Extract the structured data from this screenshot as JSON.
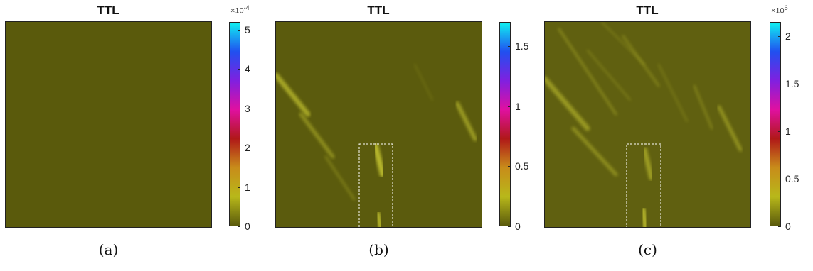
{
  "panels": [
    {
      "title": "TTL",
      "label": "(a)",
      "colorbar_ticks": [
        "0",
        "1",
        "2",
        "3",
        "4",
        "5"
      ],
      "colorbar_tick_values": [
        0,
        1,
        2,
        3,
        4,
        5
      ],
      "colorbar_max": 5.2,
      "colorbar_exponent_base": "×10",
      "colorbar_exponent": "-4",
      "background_color": "#5a5a0c"
    },
    {
      "title": "TTL",
      "label": "(b)",
      "colorbar_ticks": [
        "0",
        "0.5",
        "1",
        "1.5"
      ],
      "colorbar_tick_values": [
        0,
        0.5,
        1,
        1.5
      ],
      "colorbar_max": 1.7,
      "colorbar_exponent_base": "",
      "colorbar_exponent": "",
      "background_color": "#5b5b0d"
    },
    {
      "title": "TTL",
      "label": "(c)",
      "colorbar_ticks": [
        "0",
        "0.5",
        "1",
        "1.5",
        "2"
      ],
      "colorbar_tick_values": [
        0,
        0.5,
        1,
        1.5,
        2
      ],
      "colorbar_max": 2.15,
      "colorbar_exponent_base": "×10",
      "colorbar_exponent": "6",
      "background_color": "#606010"
    }
  ],
  "chart_data": {
    "type": "heatmap",
    "colormap": [
      "#5a5a0c",
      "#b8b81a",
      "#c88c1a",
      "#b01818",
      "#e010a0",
      "#8020e0",
      "#2050f0",
      "#10f0f0"
    ],
    "streak_color": "#c8c830",
    "highlight_box_color": "#ffffff"
  }
}
